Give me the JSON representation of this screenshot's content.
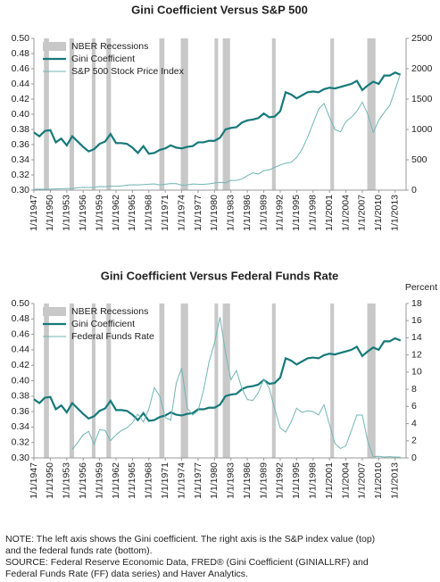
{
  "chart_data": [
    {
      "type": "line",
      "title": "Gini Coefficient Versus S&P 500",
      "xlim": [
        "1/1/1947",
        "1/1/2015"
      ],
      "xticks": [
        "1/1/1947",
        "1/1/1950",
        "1/1/1953",
        "1/1/1956",
        "1/1/1959",
        "1/1/1962",
        "1/1/1965",
        "1/1/1968",
        "1/1/1971",
        "1/1/1974",
        "1/1/1977",
        "1/1/1980",
        "1/1/1983",
        "1/1/1986",
        "1/1/1989",
        "1/1/1992",
        "1/1/1995",
        "1/1/1998",
        "1/1/2001",
        "1/1/2004",
        "1/1/2007",
        "1/1/2010",
        "1/1/2013"
      ],
      "ylim": [
        0.3,
        0.5
      ],
      "yticks": [
        {
          "value": 0.3,
          "label": "0.30"
        },
        {
          "value": 0.32,
          "label": "0.32"
        },
        {
          "value": 0.34,
          "label": "0.34"
        },
        {
          "value": 0.36,
          "label": "0.36"
        },
        {
          "value": 0.38,
          "label": "0.38"
        },
        {
          "value": 0.4,
          "label": "0.40"
        },
        {
          "value": 0.42,
          "label": "0.42"
        },
        {
          "value": 0.44,
          "label": "0.44"
        },
        {
          "value": 0.46,
          "label": "0.46"
        },
        {
          "value": 0.48,
          "label": "0.48"
        },
        {
          "value": 0.5,
          "label": "0.50"
        }
      ],
      "y2lim": [
        0,
        2500
      ],
      "y2ticks": [
        0,
        500,
        1000,
        1500,
        2000,
        2500
      ],
      "legend": "top-left",
      "recessions": {
        "name": "NBER Recessions",
        "color": "#c8c8c8",
        "periods": [
          [
            "11/1/1948",
            "10/1/1949"
          ],
          [
            "7/1/1953",
            "5/1/1954"
          ],
          [
            "8/1/1957",
            "4/1/1958"
          ],
          [
            "4/1/1960",
            "2/1/1961"
          ],
          [
            "12/1/1969",
            "11/1/1970"
          ],
          [
            "11/1/1973",
            "3/1/1975"
          ],
          [
            "1/1/1980",
            "7/1/1980"
          ],
          [
            "7/1/1981",
            "11/1/1982"
          ],
          [
            "7/1/1990",
            "3/1/1991"
          ],
          [
            "3/1/2001",
            "11/1/2001"
          ],
          [
            "12/1/2007",
            "6/1/2009"
          ]
        ]
      },
      "x": [
        "1/1/1947",
        "1/1/1948",
        "1/1/1949",
        "1/1/1950",
        "1/1/1951",
        "1/1/1952",
        "1/1/1953",
        "1/1/1954",
        "1/1/1955",
        "1/1/1956",
        "1/1/1957",
        "1/1/1958",
        "1/1/1959",
        "1/1/1960",
        "1/1/1961",
        "1/1/1962",
        "1/1/1963",
        "1/1/1964",
        "1/1/1965",
        "1/1/1966",
        "1/1/1967",
        "1/1/1968",
        "1/1/1969",
        "1/1/1970",
        "1/1/1971",
        "1/1/1972",
        "1/1/1973",
        "1/1/1974",
        "1/1/1975",
        "1/1/1976",
        "1/1/1977",
        "1/1/1978",
        "1/1/1979",
        "1/1/1980",
        "1/1/1981",
        "1/1/1982",
        "1/1/1983",
        "1/1/1984",
        "1/1/1985",
        "1/1/1986",
        "1/1/1987",
        "1/1/1988",
        "1/1/1989",
        "1/1/1990",
        "1/1/1991",
        "1/1/1992",
        "1/1/1993",
        "1/1/1994",
        "1/1/1995",
        "1/1/1996",
        "1/1/1997",
        "1/1/1998",
        "1/1/1999",
        "1/1/2000",
        "1/1/2001",
        "1/1/2002",
        "1/1/2003",
        "1/1/2004",
        "1/1/2005",
        "1/1/2006",
        "1/1/2007",
        "1/1/2008",
        "1/1/2009",
        "1/1/2010",
        "1/1/2011",
        "1/1/2012",
        "1/1/2013",
        "1/1/2014"
      ],
      "series": [
        {
          "name": "Gini Coefficient",
          "color": "#16797a",
          "width": 2.2,
          "axis": "y",
          "values": [
            0.376,
            0.371,
            0.378,
            0.379,
            0.363,
            0.368,
            0.359,
            0.371,
            0.364,
            0.357,
            0.351,
            0.354,
            0.361,
            0.364,
            0.374,
            0.362,
            0.362,
            0.361,
            0.356,
            0.349,
            0.358,
            0.348,
            0.349,
            0.353,
            0.355,
            0.359,
            0.356,
            0.355,
            0.357,
            0.358,
            0.363,
            0.363,
            0.365,
            0.365,
            0.369,
            0.38,
            0.382,
            0.383,
            0.389,
            0.392,
            0.393,
            0.395,
            0.401,
            0.396,
            0.397,
            0.404,
            0.429,
            0.426,
            0.421,
            0.425,
            0.429,
            0.43,
            0.429,
            0.433,
            0.435,
            0.434,
            0.436,
            0.438,
            0.44,
            0.444,
            0.432,
            0.438,
            0.443,
            0.44,
            0.451,
            0.451,
            0.455,
            0.452
          ]
        },
        {
          "name": "S&P 500 Stock Price Index",
          "color": "#72b5b5",
          "width": 1,
          "axis": "y2",
          "values": [
            15,
            16,
            15,
            17,
            21,
            24,
            25,
            28,
            40,
            46,
            45,
            45,
            58,
            57,
            64,
            64,
            68,
            82,
            88,
            87,
            91,
            98,
            102,
            85,
            98,
            109,
            107,
            83,
            86,
            101,
            97,
            96,
            103,
            118,
            128,
            120,
            160,
            160,
            185,
            238,
            285,
            265,
            320,
            335,
            375,
            415,
            445,
            460,
            540,
            670,
            870,
            1100,
            1330,
            1430,
            1200,
            1000,
            960,
            1130,
            1200,
            1300,
            1450,
            1250,
            950,
            1150,
            1280,
            1390,
            1650,
            1930
          ]
        }
      ]
    },
    {
      "type": "line",
      "title": "Gini Coefficient Versus Federal Funds Rate",
      "y2label": "Percent",
      "xlim": [
        "1/1/1947",
        "1/1/2015"
      ],
      "xticks": [
        "1/1/1947",
        "1/1/1950",
        "1/1/1953",
        "1/1/1956",
        "1/1/1959",
        "1/1/1962",
        "1/1/1965",
        "1/1/1968",
        "1/1/1971",
        "1/1/1974",
        "1/1/1977",
        "1/1/1980",
        "1/1/1983",
        "1/1/1986",
        "1/1/1989",
        "1/1/1992",
        "1/1/1995",
        "1/1/1998",
        "1/1/2001",
        "1/1/2004",
        "1/1/2007",
        "1/1/2010",
        "1/1/2013"
      ],
      "ylim": [
        0.3,
        0.5
      ],
      "yticks": [
        {
          "value": 0.3,
          "label": "0.30"
        },
        {
          "value": 0.32,
          "label": "0.32"
        },
        {
          "value": 0.34,
          "label": "0.34"
        },
        {
          "value": 0.36,
          "label": "0.36"
        },
        {
          "value": 0.38,
          "label": "0.38"
        },
        {
          "value": 0.4,
          "label": "0.40"
        },
        {
          "value": 0.42,
          "label": "0.42"
        },
        {
          "value": 0.44,
          "label": "0.44"
        },
        {
          "value": 0.46,
          "label": "0.46"
        },
        {
          "value": 0.48,
          "label": "0.48"
        },
        {
          "value": 0.5,
          "label": "0.50"
        }
      ],
      "y2lim": [
        0,
        18
      ],
      "y2ticks": [
        0,
        2,
        4,
        6,
        8,
        10,
        12,
        14,
        16,
        18
      ],
      "legend": "top-left",
      "recessions": {
        "name": "NBER Recessions",
        "color": "#c8c8c8",
        "periods": [
          [
            "11/1/1948",
            "10/1/1949"
          ],
          [
            "7/1/1953",
            "5/1/1954"
          ],
          [
            "8/1/1957",
            "4/1/1958"
          ],
          [
            "4/1/1960",
            "2/1/1961"
          ],
          [
            "12/1/1969",
            "11/1/1970"
          ],
          [
            "11/1/1973",
            "3/1/1975"
          ],
          [
            "1/1/1980",
            "7/1/1980"
          ],
          [
            "7/1/1981",
            "11/1/1982"
          ],
          [
            "7/1/1990",
            "3/1/1991"
          ],
          [
            "3/1/2001",
            "11/1/2001"
          ],
          [
            "12/1/2007",
            "6/1/2009"
          ]
        ]
      },
      "x": [
        "1/1/1947",
        "1/1/1948",
        "1/1/1949",
        "1/1/1950",
        "1/1/1951",
        "1/1/1952",
        "1/1/1953",
        "1/1/1954",
        "1/1/1955",
        "1/1/1956",
        "1/1/1957",
        "1/1/1958",
        "1/1/1959",
        "1/1/1960",
        "1/1/1961",
        "1/1/1962",
        "1/1/1963",
        "1/1/1964",
        "1/1/1965",
        "1/1/1966",
        "1/1/1967",
        "1/1/1968",
        "1/1/1969",
        "1/1/1970",
        "1/1/1971",
        "1/1/1972",
        "1/1/1973",
        "1/1/1974",
        "1/1/1975",
        "1/1/1976",
        "1/1/1977",
        "1/1/1978",
        "1/1/1979",
        "1/1/1980",
        "1/1/1981",
        "1/1/1982",
        "1/1/1983",
        "1/1/1984",
        "1/1/1985",
        "1/1/1986",
        "1/1/1987",
        "1/1/1988",
        "1/1/1989",
        "1/1/1990",
        "1/1/1991",
        "1/1/1992",
        "1/1/1993",
        "1/1/1994",
        "1/1/1995",
        "1/1/1996",
        "1/1/1997",
        "1/1/1998",
        "1/1/1999",
        "1/1/2000",
        "1/1/2001",
        "1/1/2002",
        "1/1/2003",
        "1/1/2004",
        "1/1/2005",
        "1/1/2006",
        "1/1/2007",
        "1/1/2008",
        "1/1/2009",
        "1/1/2010",
        "1/1/2011",
        "1/1/2012",
        "1/1/2013",
        "1/1/2014"
      ],
      "series": [
        {
          "name": "Gini Coefficient",
          "color": "#16797a",
          "width": 2.2,
          "axis": "y",
          "values": [
            0.376,
            0.371,
            0.378,
            0.379,
            0.363,
            0.368,
            0.359,
            0.371,
            0.364,
            0.357,
            0.351,
            0.354,
            0.361,
            0.364,
            0.374,
            0.362,
            0.362,
            0.361,
            0.356,
            0.349,
            0.358,
            0.348,
            0.349,
            0.353,
            0.355,
            0.359,
            0.356,
            0.355,
            0.357,
            0.358,
            0.363,
            0.363,
            0.365,
            0.365,
            0.369,
            0.38,
            0.382,
            0.383,
            0.389,
            0.392,
            0.393,
            0.395,
            0.401,
            0.396,
            0.397,
            0.404,
            0.429,
            0.426,
            0.421,
            0.425,
            0.429,
            0.43,
            0.429,
            0.433,
            0.435,
            0.434,
            0.436,
            0.438,
            0.44,
            0.444,
            0.432,
            0.438,
            0.443,
            0.44,
            0.451,
            0.451,
            0.455,
            0.452
          ]
        },
        {
          "name": "Federal Funds Rate",
          "color": "#72b5b5",
          "width": 1,
          "axis": "y2",
          "values": [
            null,
            null,
            null,
            null,
            null,
            null,
            null,
            1.0,
            1.8,
            2.7,
            3.1,
            1.6,
            3.3,
            3.2,
            2.0,
            2.7,
            3.2,
            3.5,
            4.1,
            5.1,
            4.2,
            5.7,
            8.2,
            7.2,
            4.7,
            4.4,
            8.7,
            10.5,
            5.8,
            5.0,
            5.5,
            7.9,
            11.2,
            13.4,
            16.4,
            12.3,
            9.1,
            10.2,
            8.1,
            6.8,
            6.7,
            7.6,
            9.2,
            8.1,
            5.7,
            3.5,
            3.0,
            4.2,
            5.8,
            5.3,
            5.5,
            5.4,
            5.0,
            6.2,
            3.9,
            1.7,
            1.1,
            1.4,
            3.2,
            5.0,
            5.0,
            1.9,
            0.16,
            0.18,
            0.1,
            0.14,
            0.11,
            0.09
          ]
        }
      ]
    }
  ],
  "notes": [
    "NOTE: The left axis shows the Gini coefficient. The right axis is the S&P index value (top)",
    "and the federal funds rate (bottom).",
    "SOURCE: Federal Reserve Economic Data, FRED® (Gini Coefficient (GINIALLRF) and",
    "Federal Funds Rate (FF) data series) and Haver Analytics."
  ]
}
